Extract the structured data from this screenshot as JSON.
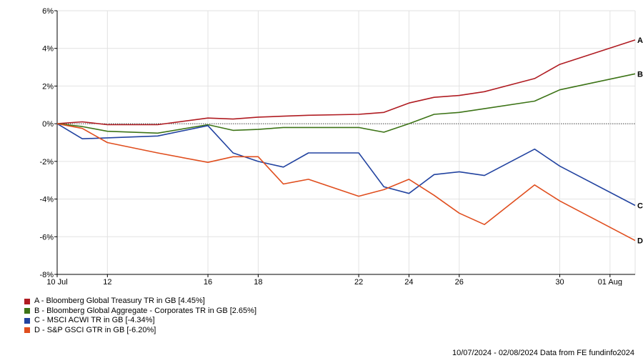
{
  "chart_data": {
    "type": "line",
    "x": [
      "10 Jul",
      "11 Jul",
      "12 Jul",
      "13 Jul",
      "14 Jul",
      "15 Jul",
      "16 Jul",
      "17 Jul",
      "18 Jul",
      "19 Jul",
      "20 Jul",
      "21 Jul",
      "22 Jul",
      "23 Jul",
      "24 Jul",
      "25 Jul",
      "26 Jul",
      "27 Jul",
      "28 Jul",
      "29 Jul",
      "30 Jul",
      "31 Jul",
      "01 Aug",
      "02 Aug"
    ],
    "x_tick_labels": [
      "10 Jul",
      "12",
      "16",
      "18",
      "22",
      "24",
      "26",
      "30",
      "01 Aug"
    ],
    "y_tick_labels": [
      "6%",
      "4%",
      "2%",
      "0%",
      "-2%",
      "-4%",
      "-6%",
      "-8%"
    ],
    "ylim": [
      -8,
      6
    ],
    "grid": true,
    "series": [
      {
        "id": "A",
        "name": "A - Bloomberg Global Treasury TR in GB [4.45%]",
        "color": "#b01c22",
        "points": [
          [
            0,
            0
          ],
          [
            1,
            0.1
          ],
          [
            2,
            -0.05
          ],
          [
            3,
            -0.05
          ],
          [
            4,
            0.3
          ],
          [
            5,
            0.25
          ],
          [
            6,
            0.35
          ],
          [
            7,
            0.4
          ],
          [
            8,
            0.45
          ],
          [
            9,
            0.5
          ],
          [
            10,
            0.6
          ],
          [
            11,
            1.1
          ],
          [
            12,
            1.4
          ],
          [
            13,
            1.5
          ],
          [
            14,
            1.7
          ],
          [
            15,
            2.4
          ],
          [
            16,
            3.15
          ],
          [
            17,
            4.45
          ]
        ]
      },
      {
        "id": "B",
        "name": "B - Bloomberg Global Aggregate - Corporates TR in GB [2.65%]",
        "color": "#3d7417",
        "points": [
          [
            0,
            0
          ],
          [
            1,
            -0.15
          ],
          [
            2,
            -0.4
          ],
          [
            3,
            -0.5
          ],
          [
            4,
            -0.05
          ],
          [
            5,
            -0.35
          ],
          [
            6,
            -0.3
          ],
          [
            7,
            -0.2
          ],
          [
            8,
            -0.2
          ],
          [
            9,
            -0.2
          ],
          [
            10,
            -0.45
          ],
          [
            11,
            0
          ],
          [
            12,
            0.5
          ],
          [
            13,
            0.6
          ],
          [
            14,
            0.8
          ],
          [
            15,
            1.2
          ],
          [
            16,
            1.8
          ],
          [
            17,
            2.65
          ]
        ]
      },
      {
        "id": "C",
        "name": "C - MSCI ACWI TR in GB [-4.34%]",
        "color": "#2243a0",
        "points": [
          [
            0,
            0
          ],
          [
            1,
            -0.8
          ],
          [
            2,
            -0.75
          ],
          [
            3,
            -0.65
          ],
          [
            4,
            -0.1
          ],
          [
            5,
            -1.55
          ],
          [
            6,
            -2.0
          ],
          [
            7,
            -2.3
          ],
          [
            8,
            -1.55
          ],
          [
            9,
            -1.55
          ],
          [
            10,
            -3.35
          ],
          [
            11,
            -3.7
          ],
          [
            12,
            -2.7
          ],
          [
            13,
            -2.55
          ],
          [
            14,
            -2.75
          ],
          [
            15,
            -1.35
          ],
          [
            16,
            -2.25
          ],
          [
            17,
            -4.34
          ]
        ]
      },
      {
        "id": "D",
        "name": "D - S&P GSCI GTR in GB [-6.20%]",
        "color": "#e04e1e",
        "points": [
          [
            0,
            0
          ],
          [
            1,
            -0.25
          ],
          [
            2,
            -1.0
          ],
          [
            3,
            -1.55
          ],
          [
            4,
            -2.05
          ],
          [
            5,
            -1.75
          ],
          [
            6,
            -1.75
          ],
          [
            7,
            -3.2
          ],
          [
            8,
            -2.95
          ],
          [
            9,
            -3.85
          ],
          [
            10,
            -3.5
          ],
          [
            11,
            -2.95
          ],
          [
            12,
            -3.8
          ],
          [
            13,
            -4.75
          ],
          [
            14,
            -5.35
          ],
          [
            15,
            -3.25
          ],
          [
            16,
            -4.1
          ],
          [
            17,
            -6.2
          ]
        ]
      }
    ]
  },
  "legend": {
    "items": [
      {
        "label": "A - Bloomberg Global Treasury TR in GB [4.45%]",
        "color": "#b01c22"
      },
      {
        "label": "B - Bloomberg Global Aggregate - Corporates TR in GB [2.65%]",
        "color": "#3d7417"
      },
      {
        "label": "C - MSCI ACWI TR in GB [-4.34%]",
        "color": "#2243a0"
      },
      {
        "label": "D - S&P GSCI GTR in GB [-6.20%]",
        "color": "#e04e1e"
      }
    ]
  },
  "footer": {
    "text": "10/07/2024 - 02/08/2024 Data from FE fundinfo2024"
  }
}
